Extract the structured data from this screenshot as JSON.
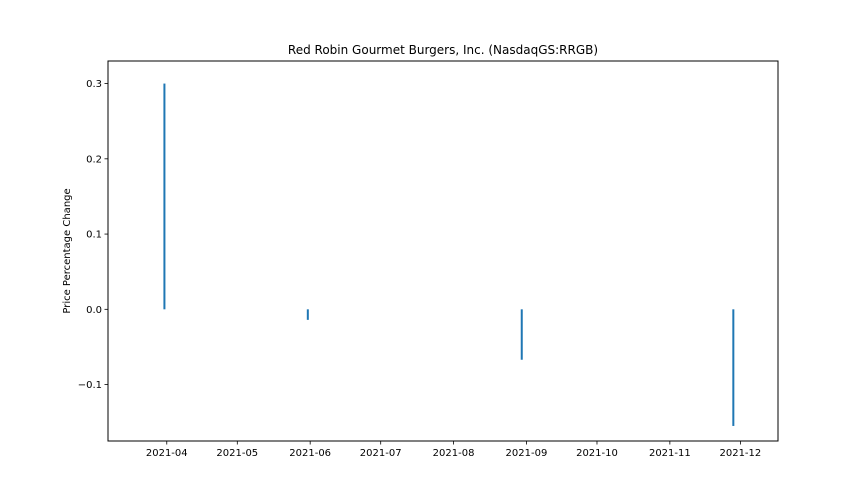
{
  "chart_data": {
    "type": "bar",
    "title": "Red Robin Gourmet Burgers, Inc. (NasdaqGS:RRGB)",
    "xlabel": "",
    "ylabel": "Price Percentage Change",
    "x_type": "date",
    "xlim": [
      "2021-03-07",
      "2021-12-17"
    ],
    "ylim": [
      -0.175,
      0.33
    ],
    "x_ticks": [
      "2021-04-01",
      "2021-05-01",
      "2021-06-01",
      "2021-07-01",
      "2021-08-01",
      "2021-09-01",
      "2021-10-01",
      "2021-11-01",
      "2021-12-01"
    ],
    "x_tick_labels": [
      "2021-04",
      "2021-05",
      "2021-06",
      "2021-07",
      "2021-08",
      "2021-09",
      "2021-10",
      "2021-11",
      "2021-12"
    ],
    "y_ticks": [
      -0.1,
      0.0,
      0.1,
      0.2,
      0.3
    ],
    "y_tick_labels": [
      "−0.1",
      "0.0",
      "0.1",
      "0.2",
      "0.3"
    ],
    "grid": false,
    "legend": "none",
    "color": "#1f77b4",
    "points": [
      {
        "date": "2021-03-31",
        "value": 0.3
      },
      {
        "date": "2021-05-31",
        "value": -0.014
      },
      {
        "date": "2021-08-30",
        "value": -0.067
      },
      {
        "date": "2021-11-28",
        "value": -0.155
      }
    ]
  }
}
